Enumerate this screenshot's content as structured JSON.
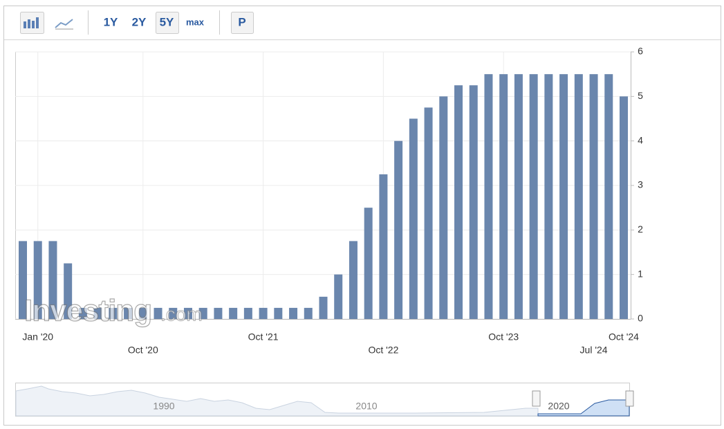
{
  "toolbar": {
    "ranges": [
      "1Y",
      "2Y",
      "5Y",
      "max"
    ],
    "extra": "P"
  },
  "chart_data": {
    "type": "bar",
    "categories": [
      null,
      "Jan '20",
      null,
      null,
      null,
      null,
      null,
      null,
      "Oct '20",
      null,
      null,
      null,
      null,
      null,
      null,
      null,
      "Oct '21",
      null,
      null,
      null,
      null,
      null,
      null,
      null,
      "Oct '22",
      null,
      null,
      null,
      null,
      null,
      null,
      null,
      "Oct '23",
      null,
      null,
      null,
      null,
      null,
      "Jul '24",
      null,
      "Oct '24"
    ],
    "values": [
      1.75,
      1.75,
      1.75,
      1.25,
      0.25,
      0.25,
      0.25,
      0.25,
      0.25,
      0.25,
      0.25,
      0.25,
      0.25,
      0.25,
      0.25,
      0.25,
      0.25,
      0.25,
      0.25,
      0.25,
      0.5,
      1.0,
      1.75,
      2.5,
      3.25,
      4.0,
      4.5,
      4.75,
      5.0,
      5.25,
      5.25,
      5.5,
      5.5,
      5.5,
      5.5,
      5.5,
      5.5,
      5.5,
      5.5,
      5.5,
      5.0
    ],
    "color": "#6a86ad",
    "ylim": [
      0,
      6
    ],
    "yticks": [
      0,
      1,
      2,
      3,
      4,
      5,
      6
    ],
    "grid": true
  },
  "watermark": {
    "brand": "Investing",
    "suffix": ".com"
  },
  "navigator": {
    "labels": [
      "1990",
      "2010",
      "2020"
    ]
  }
}
